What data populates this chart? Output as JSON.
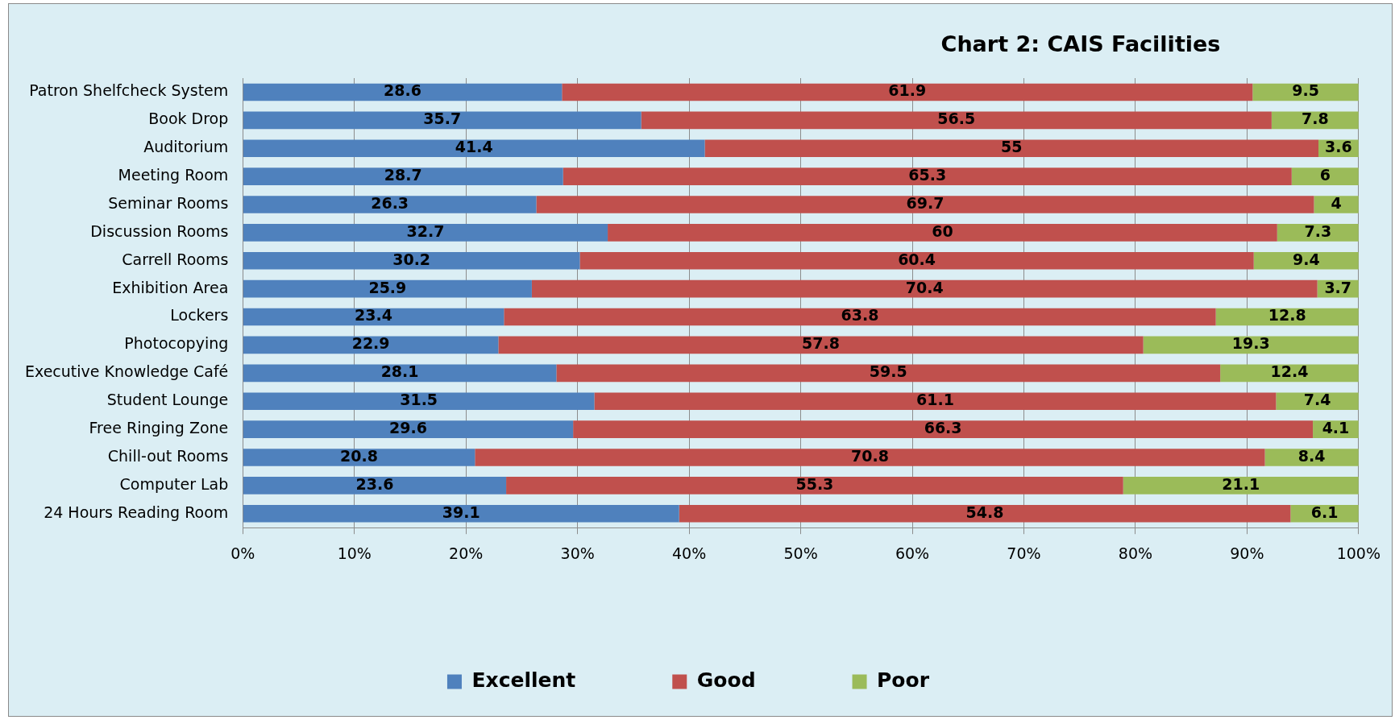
{
  "chart_data": {
    "type": "bar",
    "title": "Chart 2: CAIS Facilities",
    "orientation": "horizontal",
    "stacked": true,
    "categories": [
      "Patron Shelfcheck System",
      "Book Drop",
      "Auditorium",
      "Meeting Room",
      "Seminar Rooms",
      "Discussion Rooms",
      "Carrell Rooms",
      "Exhibition Area",
      "Lockers",
      "Photocopying",
      "Executive Knowledge Café",
      "Student Lounge",
      "Free Ringing Zone",
      "Chill-out Rooms",
      "Computer Lab",
      "24 Hours Reading Room"
    ],
    "series": [
      {
        "name": "Excellent",
        "color": "#4f81bd",
        "values": [
          28.6,
          35.7,
          41.4,
          28.7,
          26.3,
          32.7,
          30.2,
          25.9,
          23.4,
          22.9,
          28.1,
          31.5,
          29.6,
          20.8,
          23.6,
          39.1
        ]
      },
      {
        "name": "Good",
        "color": "#c0504d",
        "values": [
          61.9,
          56.5,
          55,
          65.3,
          69.7,
          60,
          60.4,
          70.4,
          63.8,
          57.8,
          59.5,
          61.1,
          66.3,
          70.8,
          55.3,
          54.8
        ]
      },
      {
        "name": "Poor",
        "color": "#9bbb59",
        "values": [
          9.5,
          7.8,
          3.6,
          6,
          4,
          7.3,
          9.4,
          3.7,
          12.8,
          19.3,
          12.4,
          7.4,
          4.1,
          8.4,
          21.1,
          6.1
        ]
      }
    ],
    "xlim": [
      0,
      100
    ],
    "xticks": [
      {
        "value": 0,
        "label": "0%"
      },
      {
        "value": 10,
        "label": "10%"
      },
      {
        "value": 20,
        "label": "20%"
      },
      {
        "value": 30,
        "label": "30%"
      },
      {
        "value": 40,
        "label": "40%"
      },
      {
        "value": 50,
        "label": "50%"
      },
      {
        "value": 60,
        "label": "60%"
      },
      {
        "value": 70,
        "label": "70%"
      },
      {
        "value": 80,
        "label": "80%"
      },
      {
        "value": 90,
        "label": "90%"
      },
      {
        "value": 100,
        "label": "100%"
      }
    ],
    "grid": "x",
    "legend": "bottom",
    "data_labels": true
  }
}
